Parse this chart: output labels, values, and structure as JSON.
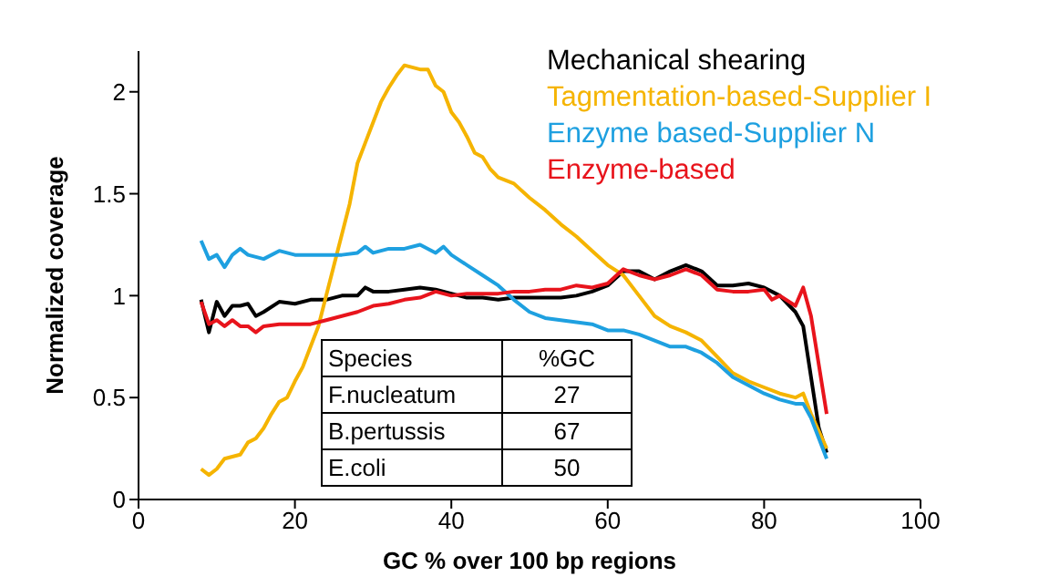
{
  "chart_data": {
    "type": "line",
    "xlabel": "GC % over 100 bp regions",
    "ylabel": "Normalized coverage",
    "xlim": [
      0,
      100
    ],
    "xticks": [
      0,
      20,
      40,
      60,
      80,
      100
    ],
    "ylim": [
      0,
      2.2
    ],
    "yticks": [
      0,
      0.5,
      1,
      1.5,
      2
    ],
    "grid": false,
    "legend": "top right",
    "marker": "none",
    "line_style": "solid",
    "annotations": [
      "Species",
      "%GC",
      "F.nucleatum",
      "27",
      "B.pertussis",
      "67",
      "E.coli",
      "50"
    ],
    "series": [
      {
        "name": "Mechanical shearing",
        "color": "#000000",
        "x": [
          8,
          9,
          10,
          11,
          12,
          13,
          14,
          15,
          16,
          18,
          20,
          22,
          24,
          26,
          28,
          29,
          30,
          32,
          34,
          36,
          38,
          40,
          42,
          44,
          46,
          48,
          50,
          52,
          54,
          56,
          58,
          60,
          62,
          64,
          66,
          68,
          70,
          72,
          74,
          76,
          78,
          80,
          82,
          84,
          85,
          86,
          87,
          88
        ],
        "values": [
          0.98,
          0.82,
          0.97,
          0.9,
          0.95,
          0.95,
          0.96,
          0.9,
          0.92,
          0.97,
          0.96,
          0.98,
          0.98,
          1.0,
          1.0,
          1.04,
          1.02,
          1.02,
          1.03,
          1.04,
          1.03,
          1.01,
          0.99,
          0.99,
          0.98,
          0.99,
          0.99,
          0.99,
          0.99,
          1.0,
          1.02,
          1.05,
          1.12,
          1.12,
          1.08,
          1.12,
          1.15,
          1.12,
          1.05,
          1.05,
          1.06,
          1.04,
          1.0,
          0.92,
          0.85,
          0.6,
          0.35,
          0.23
        ]
      },
      {
        "name": "Tagmentation-based-Supplier I",
        "color": "#f5b400",
        "x": [
          8,
          9,
          10,
          11,
          12,
          13,
          14,
          15,
          16,
          17,
          18,
          19,
          20,
          21,
          22,
          23,
          24,
          25,
          26,
          27,
          28,
          29,
          30,
          31,
          32,
          33,
          34,
          35,
          36,
          37,
          38,
          39,
          40,
          41,
          42,
          43,
          44,
          45,
          46,
          48,
          50,
          52,
          54,
          56,
          58,
          60,
          62,
          64,
          66,
          68,
          70,
          72,
          74,
          76,
          78,
          80,
          82,
          84,
          85,
          86,
          88
        ],
        "values": [
          0.15,
          0.12,
          0.15,
          0.2,
          0.21,
          0.22,
          0.28,
          0.3,
          0.35,
          0.42,
          0.48,
          0.5,
          0.58,
          0.65,
          0.75,
          0.85,
          1.0,
          1.15,
          1.3,
          1.45,
          1.65,
          1.75,
          1.85,
          1.95,
          2.02,
          2.08,
          2.13,
          2.12,
          2.11,
          2.11,
          2.03,
          2.0,
          1.9,
          1.85,
          1.78,
          1.7,
          1.68,
          1.62,
          1.58,
          1.55,
          1.48,
          1.42,
          1.35,
          1.29,
          1.22,
          1.15,
          1.1,
          1.0,
          0.9,
          0.85,
          0.82,
          0.78,
          0.7,
          0.62,
          0.58,
          0.55,
          0.52,
          0.5,
          0.52,
          0.42,
          0.25
        ]
      },
      {
        "name": "Enzyme based-Supplier N",
        "color": "#1ea0e0",
        "x": [
          8,
          9,
          10,
          11,
          12,
          13,
          14,
          16,
          18,
          20,
          22,
          24,
          26,
          28,
          29,
          30,
          32,
          34,
          36,
          38,
          39,
          40,
          42,
          44,
          46,
          48,
          50,
          52,
          54,
          56,
          58,
          60,
          62,
          64,
          66,
          68,
          70,
          72,
          74,
          76,
          78,
          80,
          82,
          84,
          85,
          86,
          88
        ],
        "values": [
          1.27,
          1.18,
          1.2,
          1.14,
          1.2,
          1.23,
          1.2,
          1.18,
          1.22,
          1.2,
          1.2,
          1.2,
          1.2,
          1.21,
          1.24,
          1.21,
          1.23,
          1.23,
          1.25,
          1.21,
          1.24,
          1.2,
          1.15,
          1.1,
          1.05,
          0.98,
          0.92,
          0.89,
          0.88,
          0.87,
          0.86,
          0.83,
          0.83,
          0.81,
          0.78,
          0.75,
          0.75,
          0.72,
          0.67,
          0.6,
          0.56,
          0.52,
          0.49,
          0.47,
          0.47,
          0.4,
          0.2
        ]
      },
      {
        "name": "Enzyme-based",
        "color": "#e8141c",
        "x": [
          8,
          9,
          10,
          11,
          12,
          13,
          14,
          15,
          16,
          18,
          20,
          22,
          24,
          26,
          28,
          30,
          32,
          34,
          36,
          38,
          40,
          42,
          44,
          46,
          48,
          50,
          52,
          54,
          56,
          58,
          60,
          62,
          64,
          66,
          68,
          70,
          72,
          74,
          76,
          78,
          80,
          81,
          82,
          84,
          85,
          86,
          88
        ],
        "values": [
          0.97,
          0.86,
          0.88,
          0.85,
          0.88,
          0.85,
          0.85,
          0.82,
          0.85,
          0.86,
          0.86,
          0.86,
          0.88,
          0.9,
          0.92,
          0.95,
          0.96,
          0.98,
          0.99,
          1.02,
          1.0,
          1.01,
          1.01,
          1.01,
          1.02,
          1.02,
          1.03,
          1.03,
          1.05,
          1.04,
          1.06,
          1.13,
          1.1,
          1.08,
          1.1,
          1.13,
          1.1,
          1.03,
          1.02,
          1.02,
          1.03,
          0.98,
          1.0,
          0.95,
          1.04,
          0.9,
          0.42
        ]
      }
    ]
  }
}
